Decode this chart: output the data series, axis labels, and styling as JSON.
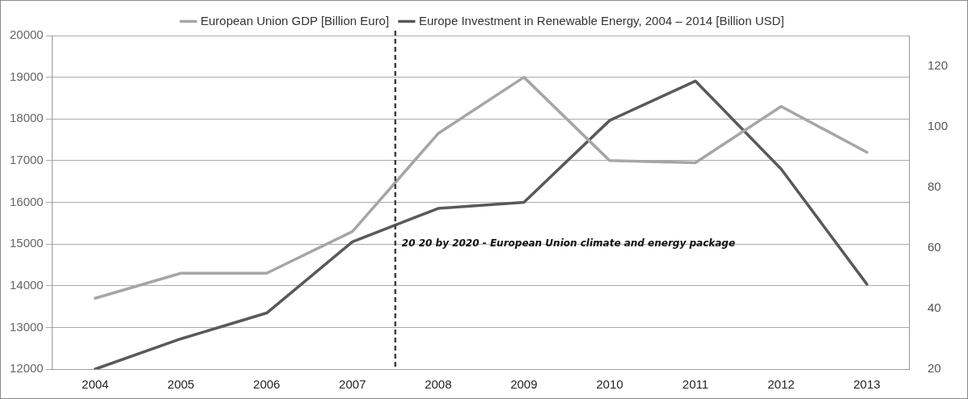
{
  "chart_data": {
    "type": "line",
    "x": [
      2004,
      2005,
      2006,
      2007,
      2008,
      2009,
      2010,
      2011,
      2012,
      2013
    ],
    "xlim": [
      2003.5,
      2013.5
    ],
    "xticks": [
      2004,
      2005,
      2006,
      2007,
      2008,
      2009,
      2010,
      2011,
      2012,
      2013
    ],
    "series": [
      {
        "name": "European Union GDP [Billion Euro]",
        "color": "#a6a6a6",
        "values": [
          13700,
          14300,
          14300,
          15300,
          17650,
          19000,
          17000,
          16950,
          18300,
          17200
        ]
      },
      {
        "name": "Europe Investment in Renewable Energy, 2004 – 2014 [Billion USD]",
        "color": "#595959",
        "axis": "y2",
        "values": [
          20,
          30,
          38.5,
          62,
          73,
          75,
          102,
          115,
          86,
          48
        ]
      }
    ],
    "ylim": [
      12000,
      20000
    ],
    "yticks": [
      12000,
      13000,
      14000,
      15000,
      16000,
      17000,
      18000,
      19000,
      20000
    ],
    "y2lim": [
      20,
      130
    ],
    "y2ticks": [
      20,
      40,
      60,
      80,
      100,
      120
    ],
    "ref_lines": [
      {
        "axis": "x",
        "value": 2007.5,
        "label": "20 20 by 2020 - European Union climate and energy package",
        "color": "#404040",
        "line_style": "dashed"
      }
    ],
    "grid": "y",
    "legend": "top",
    "marker": "none",
    "line_style": "solid"
  }
}
